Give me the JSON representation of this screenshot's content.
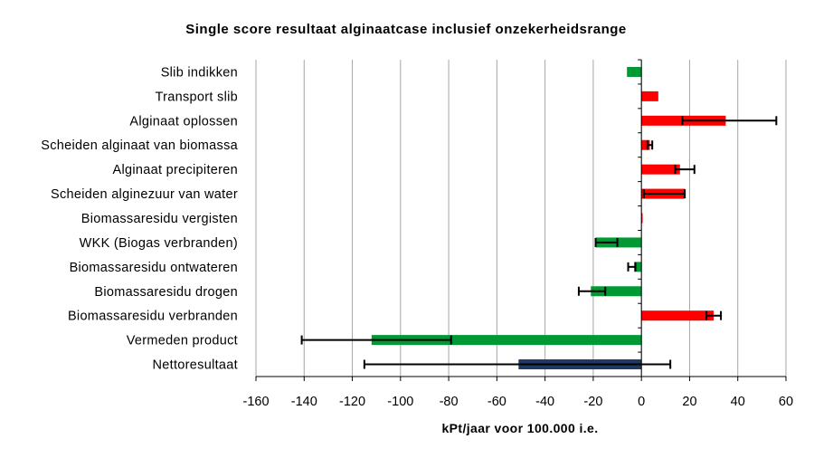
{
  "chart_data": {
    "type": "bar",
    "orientation": "horizontal",
    "title": "Single score resultaat alginaatcase inclusief onzekerheidsrange",
    "xlabel": "kPt/jaar voor 100.000 i.e.",
    "ylabel": "",
    "xlim": [
      -160,
      60
    ],
    "xticks": [
      -160,
      -140,
      -120,
      -100,
      -80,
      -60,
      -40,
      -20,
      0,
      20,
      40,
      60
    ],
    "grid": "vertical",
    "legend": "none",
    "colors": {
      "positive": "#ff0000",
      "negative": "#009933",
      "net": "#1f3864",
      "error": "#000000",
      "grid": "#a6a6a6"
    },
    "categories": [
      "Slib indikken",
      "Transport slib",
      "Alginaat oplossen",
      "Scheiden alginaat van biomassa",
      "Alginaat precipiteren",
      "Scheiden alginezuur van water",
      "Biomassaresidu vergisten",
      "WKK (Biogas verbranden)",
      "Biomassaresidu ontwateren",
      "Biomassaresidu drogen",
      "Biomassaresidu verbranden",
      "Vermeden product",
      "Nettoresultaat"
    ],
    "values": [
      -6,
      7,
      35,
      3.5,
      16,
      18,
      0.5,
      -19,
      -3,
      -21,
      30,
      -112,
      -51
    ],
    "error_low": [
      null,
      null,
      17,
      2.5,
      14,
      1,
      null,
      -10,
      -5.5,
      -26,
      27,
      -141,
      -115
    ],
    "error_high": [
      null,
      null,
      56,
      4.5,
      22,
      18,
      null,
      -19,
      -2.5,
      -15,
      33,
      -79,
      12
    ]
  }
}
